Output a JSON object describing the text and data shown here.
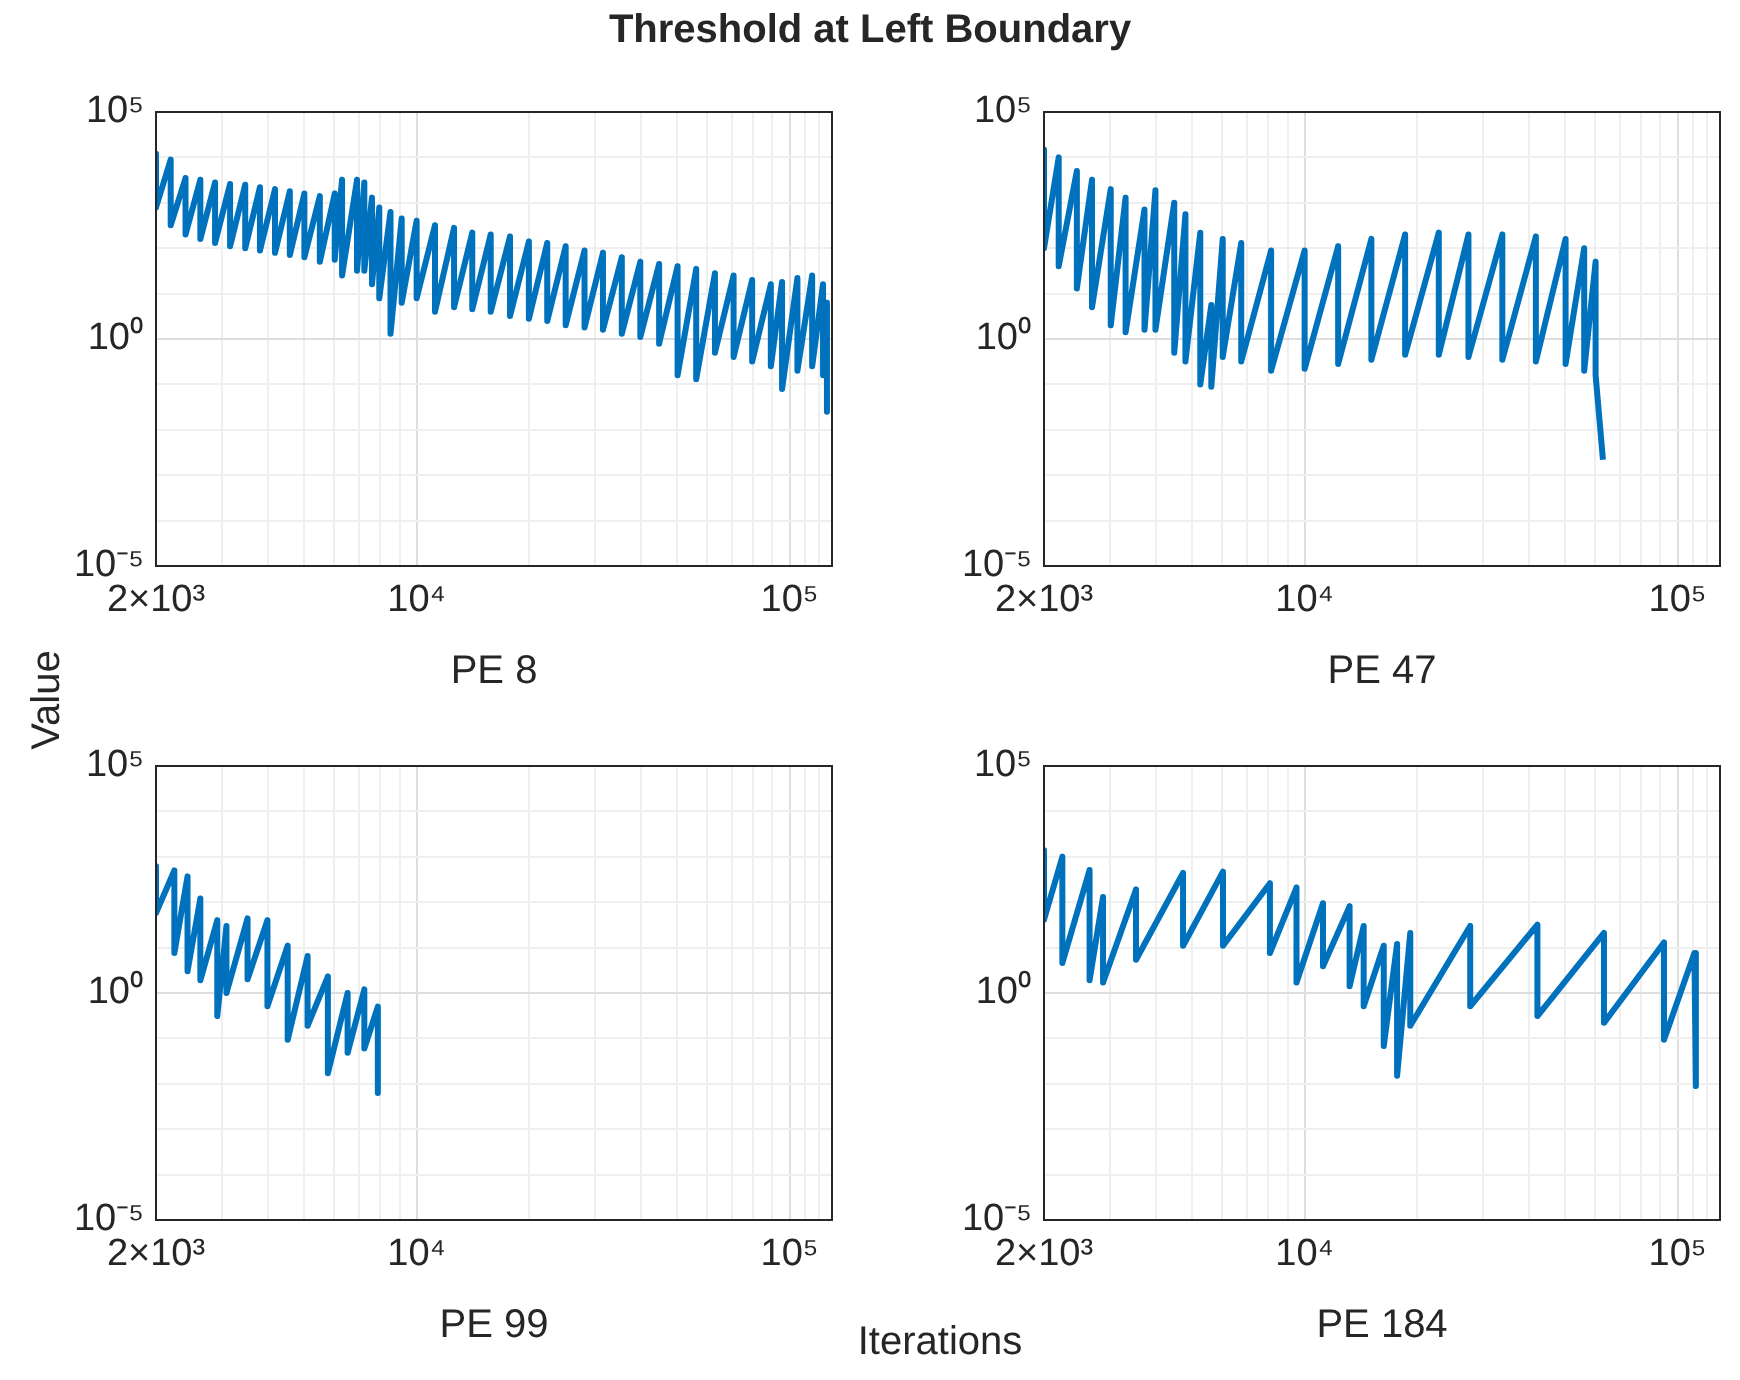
{
  "chart_data": [
    {
      "type": "line",
      "title": "Threshold at Left Boundary",
      "ylabel": "Value",
      "xlabel": "PE 8",
      "log": "xy",
      "grid": true,
      "xlim": [
        2000,
        130000
      ],
      "ylim": [
        1e-05,
        100000
      ],
      "xticks": [
        {
          "value": 2000,
          "label": "2×10³"
        },
        {
          "value": 3000,
          "label": null
        },
        {
          "value": 4000,
          "label": null
        },
        {
          "value": 5000,
          "label": null
        },
        {
          "value": 6000,
          "label": null
        },
        {
          "value": 7000,
          "label": null
        },
        {
          "value": 8000,
          "label": null
        },
        {
          "value": 9000,
          "label": null
        },
        {
          "value": 10000,
          "label": "10⁴"
        },
        {
          "value": 20000,
          "label": null
        },
        {
          "value": 30000,
          "label": null
        },
        {
          "value": 40000,
          "label": null
        },
        {
          "value": 50000,
          "label": null
        },
        {
          "value": 60000,
          "label": null
        },
        {
          "value": 70000,
          "label": null
        },
        {
          "value": 80000,
          "label": null
        },
        {
          "value": 90000,
          "label": null
        },
        {
          "value": 100000,
          "label": "10⁵"
        },
        {
          "value": 110000,
          "label": null
        },
        {
          "value": 120000,
          "label": null
        }
      ],
      "yticks": [
        {
          "value": 1e-05,
          "label": "10⁻⁵"
        },
        {
          "value": 0.0001,
          "label": null
        },
        {
          "value": 0.001,
          "label": null
        },
        {
          "value": 0.01,
          "label": null
        },
        {
          "value": 0.1,
          "label": null
        },
        {
          "value": 1,
          "label": "10⁰"
        },
        {
          "value": 10,
          "label": null
        },
        {
          "value": 100,
          "label": null
        },
        {
          "value": 1000,
          "label": null
        },
        {
          "value": 10000,
          "label": null
        },
        {
          "value": 100000,
          "label": "10⁵"
        }
      ],
      "x": [
        2000,
        2000,
        2190,
        2190,
        2400,
        2400,
        2630,
        2630,
        2880,
        2880,
        3160,
        3160,
        3470,
        3470,
        3800,
        3800,
        4170,
        4170,
        4570,
        4570,
        5000,
        5000,
        5500,
        5500,
        6030,
        6030,
        6310,
        6310,
        6920,
        6920,
        7240,
        7240,
        7590,
        7590,
        7940,
        7940,
        8510,
        8510,
        9120,
        9120,
        10000,
        10000,
        11200,
        11200,
        12600,
        12600,
        14100,
        14100,
        15800,
        15800,
        17800,
        17800,
        20000,
        20000,
        22400,
        22400,
        25100,
        25100,
        28200,
        28200,
        31600,
        31600,
        35500,
        35500,
        39800,
        39800,
        44700,
        44700,
        50100,
        50100,
        56200,
        56200,
        63100,
        63100,
        70800,
        70800,
        79400,
        79400,
        89100,
        89100,
        95500,
        95500,
        105000,
        105000,
        115000,
        115000,
        123000,
        123000,
        126000,
        126000
      ],
      "series": [
        {
          "color": "#0072bd",
          "values": [
            12000,
            790,
            8900,
            320,
            3500,
            200,
            3200,
            160,
            2800,
            130,
            2600,
            110,
            2500,
            100,
            2200,
            89,
            2000,
            79,
            1800,
            71,
            1600,
            63,
            1400,
            50,
            1600,
            56,
            3200,
            25,
            3200,
            32,
            2800,
            32,
            1300,
            16,
            790,
            7.9,
            630,
            1.3,
            450,
            6.3,
            400,
            7.9,
            320,
            4,
            280,
            5,
            220,
            4.5,
            200,
            4,
            180,
            3.2,
            140,
            2.8,
            130,
            2.5,
            110,
            2,
            89,
            1.8,
            79,
            1.6,
            63,
            1.3,
            50,
            1.1,
            45,
            0.79,
            40,
            0.16,
            35,
            0.13,
            28,
            0.5,
            25,
            0.4,
            20,
            0.32,
            16,
            0.25,
            18,
            0.079,
            22,
            0.2,
            25,
            0.25,
            16,
            0.16,
            6.3,
            0.025
          ]
        }
      ]
    },
    {
      "type": "line",
      "xlabel": "PE 47",
      "log": "xy",
      "grid": true,
      "xlim": [
        2000,
        130000
      ],
      "ylim": [
        1e-05,
        100000
      ],
      "xticks": [
        {
          "value": 2000,
          "label": "2×10³"
        },
        {
          "value": 3000,
          "label": null
        },
        {
          "value": 4000,
          "label": null
        },
        {
          "value": 5000,
          "label": null
        },
        {
          "value": 6000,
          "label": null
        },
        {
          "value": 7000,
          "label": null
        },
        {
          "value": 8000,
          "label": null
        },
        {
          "value": 9000,
          "label": null
        },
        {
          "value": 10000,
          "label": "10⁴"
        },
        {
          "value": 20000,
          "label": null
        },
        {
          "value": 30000,
          "label": null
        },
        {
          "value": 40000,
          "label": null
        },
        {
          "value": 50000,
          "label": null
        },
        {
          "value": 60000,
          "label": null
        },
        {
          "value": 70000,
          "label": null
        },
        {
          "value": 80000,
          "label": null
        },
        {
          "value": 90000,
          "label": null
        },
        {
          "value": 100000,
          "label": "10⁵"
        },
        {
          "value": 110000,
          "label": null
        },
        {
          "value": 120000,
          "label": null
        }
      ],
      "yticks": [
        {
          "value": 1e-05,
          "label": "10⁻⁵"
        },
        {
          "value": 0.0001,
          "label": null
        },
        {
          "value": 0.001,
          "label": null
        },
        {
          "value": 0.01,
          "label": null
        },
        {
          "value": 0.1,
          "label": null
        },
        {
          "value": 1,
          "label": "10⁰"
        },
        {
          "value": 10,
          "label": null
        },
        {
          "value": 100,
          "label": null
        },
        {
          "value": 1000,
          "label": null
        },
        {
          "value": 10000,
          "label": null
        },
        {
          "value": 100000,
          "label": "10⁵"
        }
      ],
      "x": [
        2000,
        2000,
        2190,
        2190,
        2450,
        2450,
        2690,
        2690,
        3020,
        3020,
        3310,
        3310,
        3720,
        3720,
        3980,
        3980,
        4470,
        4470,
        4790,
        4790,
        5250,
        5250,
        5620,
        5620,
        6030,
        6030,
        6760,
        6760,
        8130,
        8130,
        10000,
        10000,
        12300,
        12300,
        15100,
        15100,
        18600,
        18600,
        22900,
        22900,
        27500,
        27500,
        33900,
        33900,
        41700,
        41700,
        50100,
        50100,
        56200,
        56200,
        60300,
        60300,
        63100,
        63100
      ],
      "series": [
        {
          "color": "#0072bd",
          "values": [
            15000,
            100,
            10000,
            40,
            5000,
            13,
            3200,
            5,
            2000,
            2,
            1300,
            1.4,
            710,
            1.6,
            1900,
            1.6,
            1000,
            0.5,
            560,
            0.32,
            220,
            0.1,
            5.6,
            0.089,
            160,
            0.4,
            130,
            0.32,
            89,
            0.2,
            89,
            0.22,
            110,
            0.28,
            160,
            0.35,
            200,
            0.45,
            220,
            0.45,
            200,
            0.4,
            200,
            0.35,
            180,
            0.32,
            160,
            0.28,
            100,
            0.2,
            50,
            0.16,
            0.0022,
            0.0022
          ]
        }
      ]
    },
    {
      "type": "line",
      "xlabel": "PE 99",
      "annotations": [
        "Iterations"
      ],
      "log": "xy",
      "grid": true,
      "xlim": [
        2000,
        130000
      ],
      "ylim": [
        1e-05,
        100000
      ],
      "xticks": [
        {
          "value": 2000,
          "label": "2×10³"
        },
        {
          "value": 3000,
          "label": null
        },
        {
          "value": 4000,
          "label": null
        },
        {
          "value": 5000,
          "label": null
        },
        {
          "value": 6000,
          "label": null
        },
        {
          "value": 7000,
          "label": null
        },
        {
          "value": 8000,
          "label": null
        },
        {
          "value": 9000,
          "label": null
        },
        {
          "value": 10000,
          "label": "10⁴"
        },
        {
          "value": 20000,
          "label": null
        },
        {
          "value": 30000,
          "label": null
        },
        {
          "value": 40000,
          "label": null
        },
        {
          "value": 50000,
          "label": null
        },
        {
          "value": 60000,
          "label": null
        },
        {
          "value": 70000,
          "label": null
        },
        {
          "value": 80000,
          "label": null
        },
        {
          "value": 90000,
          "label": null
        },
        {
          "value": 100000,
          "label": "10⁵"
        },
        {
          "value": 110000,
          "label": null
        },
        {
          "value": 120000,
          "label": null
        }
      ],
      "yticks": [
        {
          "value": 1e-05,
          "label": "10⁻⁵"
        },
        {
          "value": 0.0001,
          "label": null
        },
        {
          "value": 0.001,
          "label": null
        },
        {
          "value": 0.01,
          "label": null
        },
        {
          "value": 0.1,
          "label": null
        },
        {
          "value": 1,
          "label": "10⁰"
        },
        {
          "value": 10,
          "label": null
        },
        {
          "value": 100,
          "label": null
        },
        {
          "value": 1000,
          "label": null
        },
        {
          "value": 10000,
          "label": null
        },
        {
          "value": 100000,
          "label": "10⁵"
        }
      ],
      "x": [
        2000,
        2000,
        2240,
        2240,
        2430,
        2430,
        2630,
        2630,
        2920,
        2920,
        3090,
        3090,
        3520,
        3520,
        3980,
        3980,
        4510,
        4510,
        5100,
        5100,
        5780,
        5780,
        6530,
        6530,
        7240,
        7240,
        7870,
        7870
      ],
      "series": [
        {
          "color": "#0072bd",
          "values": [
            620,
            58,
            500,
            7.6,
            370,
            3,
            120,
            1.9,
            40,
            0.31,
            30,
            1,
            44,
            2,
            40,
            0.51,
            11,
            0.093,
            6.5,
            0.19,
            2.3,
            0.017,
            1,
            0.048,
            1.2,
            0.06,
            0.5,
            0.0063
          ]
        }
      ]
    },
    {
      "type": "line",
      "xlabel": "PE 184",
      "log": "xy",
      "grid": true,
      "xlim": [
        2000,
        130000
      ],
      "ylim": [
        1e-05,
        100000
      ],
      "xticks": [
        {
          "value": 2000,
          "label": "2×10³"
        },
        {
          "value": 3000,
          "label": null
        },
        {
          "value": 4000,
          "label": null
        },
        {
          "value": 5000,
          "label": null
        },
        {
          "value": 6000,
          "label": null
        },
        {
          "value": 7000,
          "label": null
        },
        {
          "value": 8000,
          "label": null
        },
        {
          "value": 9000,
          "label": null
        },
        {
          "value": 10000,
          "label": "10⁴"
        },
        {
          "value": 20000,
          "label": null
        },
        {
          "value": 30000,
          "label": null
        },
        {
          "value": 40000,
          "label": null
        },
        {
          "value": 50000,
          "label": null
        },
        {
          "value": 60000,
          "label": null
        },
        {
          "value": 70000,
          "label": null
        },
        {
          "value": 80000,
          "label": null
        },
        {
          "value": 90000,
          "label": null
        },
        {
          "value": 100000,
          "label": "10⁵"
        },
        {
          "value": 110000,
          "label": null
        },
        {
          "value": 120000,
          "label": null
        }
      ],
      "yticks": [
        {
          "value": 1e-05,
          "label": "10⁻⁵"
        },
        {
          "value": 0.0001,
          "label": null
        },
        {
          "value": 0.001,
          "label": null
        },
        {
          "value": 0.01,
          "label": null
        },
        {
          "value": 0.1,
          "label": null
        },
        {
          "value": 1,
          "label": "10⁰"
        },
        {
          "value": 10,
          "label": null
        },
        {
          "value": 100,
          "label": null
        },
        {
          "value": 1000,
          "label": null
        },
        {
          "value": 10000,
          "label": null
        },
        {
          "value": 100000,
          "label": "10⁵"
        }
      ],
      "x": [
        2000,
        2000,
        2240,
        2240,
        2650,
        2650,
        2880,
        2880,
        3530,
        3530,
        4720,
        4720,
        6040,
        6040,
        8070,
        8070,
        9510,
        9510,
        11200,
        11200,
        13200,
        13200,
        14400,
        14400,
        16300,
        16300,
        17700,
        17700,
        19200,
        19200,
        27800,
        27800,
        42100,
        42100,
        63500,
        63500,
        92000,
        92000,
        111000,
        112000
      ],
      "series": [
        {
          "color": "#0072bd",
          "values": [
            1400,
            41,
            1000,
            4.6,
            510,
            1.9,
            130,
            1.7,
            190,
            5.4,
            440,
            11,
            470,
            11,
            260,
            7.6,
            210,
            1.7,
            95,
            3.9,
            81,
            1.4,
            30,
            0.51,
            11,
            0.068,
            12,
            0.015,
            21,
            0.19,
            30,
            0.51,
            32,
            0.31,
            21,
            0.22,
            13,
            0.093,
            7.6,
            0.0089
          ]
        }
      ]
    }
  ]
}
